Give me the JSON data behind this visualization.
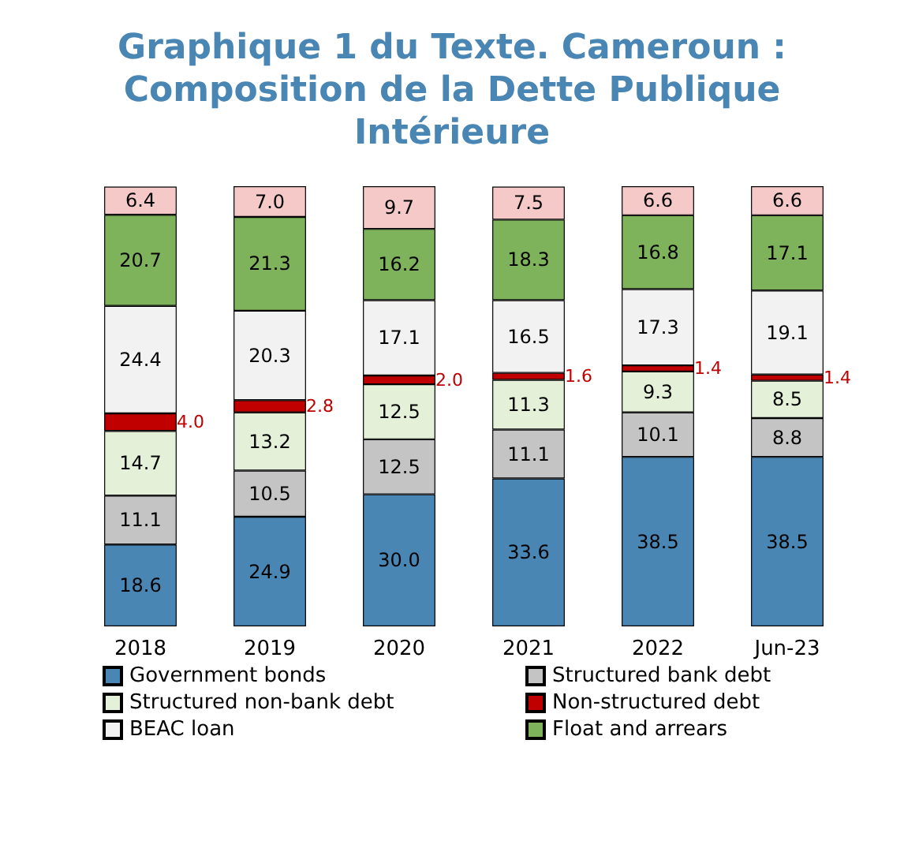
{
  "chart_data": {
    "type": "bar",
    "stacked": true,
    "title": "Graphique 1 du Texte. Cameroun :\nComposition de la Dette Publique\nIntérieure",
    "categories": [
      "2018",
      "2019",
      "2020",
      "2021",
      "2022",
      "Jun-23"
    ],
    "legend": "bottom",
    "grid": false,
    "series": [
      {
        "name": "Government bonds",
        "color": "#4a86b4",
        "values": [
          18.6,
          24.9,
          30.0,
          33.6,
          38.5,
          38.5
        ],
        "value_labels": [
          "18.6",
          "24.9",
          "30.0",
          "33.6",
          "38.5",
          "38.5"
        ]
      },
      {
        "name": "Structured bank debt",
        "color": "#c4c4c4",
        "values": [
          11.1,
          10.5,
          12.5,
          11.1,
          10.1,
          8.8
        ],
        "value_labels": [
          "11.1",
          "10.5",
          "12.5",
          "11.1",
          "10.1",
          "8.8"
        ]
      },
      {
        "name": "Structured non-bank debt",
        "color": "#e4f1d8",
        "values": [
          14.7,
          13.2,
          12.5,
          11.3,
          9.3,
          8.5
        ],
        "value_labels": [
          "14.7",
          "13.2",
          "12.5",
          "11.3",
          "9.3",
          "8.5"
        ]
      },
      {
        "name": "Non-structured debt",
        "color": "#c00000",
        "values": [
          4.0,
          2.8,
          2.0,
          1.6,
          1.4,
          1.4
        ],
        "value_labels": [
          "4.0",
          "2.8",
          "2.0",
          "1.6",
          "1.4",
          "1.4"
        ]
      },
      {
        "name": "BEAC loan",
        "color": "#f2f2f2",
        "values": [
          24.4,
          20.3,
          17.1,
          16.5,
          17.3,
          19.1
        ],
        "value_labels": [
          "24.4",
          "20.3",
          "17.1",
          "16.5",
          "17.3",
          "19.1"
        ]
      },
      {
        "name": "Float and arrears",
        "color": "#7eb35b",
        "values": [
          20.7,
          21.3,
          16.2,
          18.3,
          16.8,
          17.1
        ],
        "value_labels": [
          "20.7",
          "21.3",
          "16.2",
          "18.3",
          "16.8",
          "17.1"
        ]
      },
      {
        "color": "#f6c9c9",
        "values": [
          6.4,
          7.0,
          9.7,
          7.5,
          6.6,
          6.6
        ],
        "value_labels": [
          "6.4",
          "7.0",
          "9.7",
          "7.5",
          "6.6",
          "6.6"
        ]
      }
    ]
  }
}
